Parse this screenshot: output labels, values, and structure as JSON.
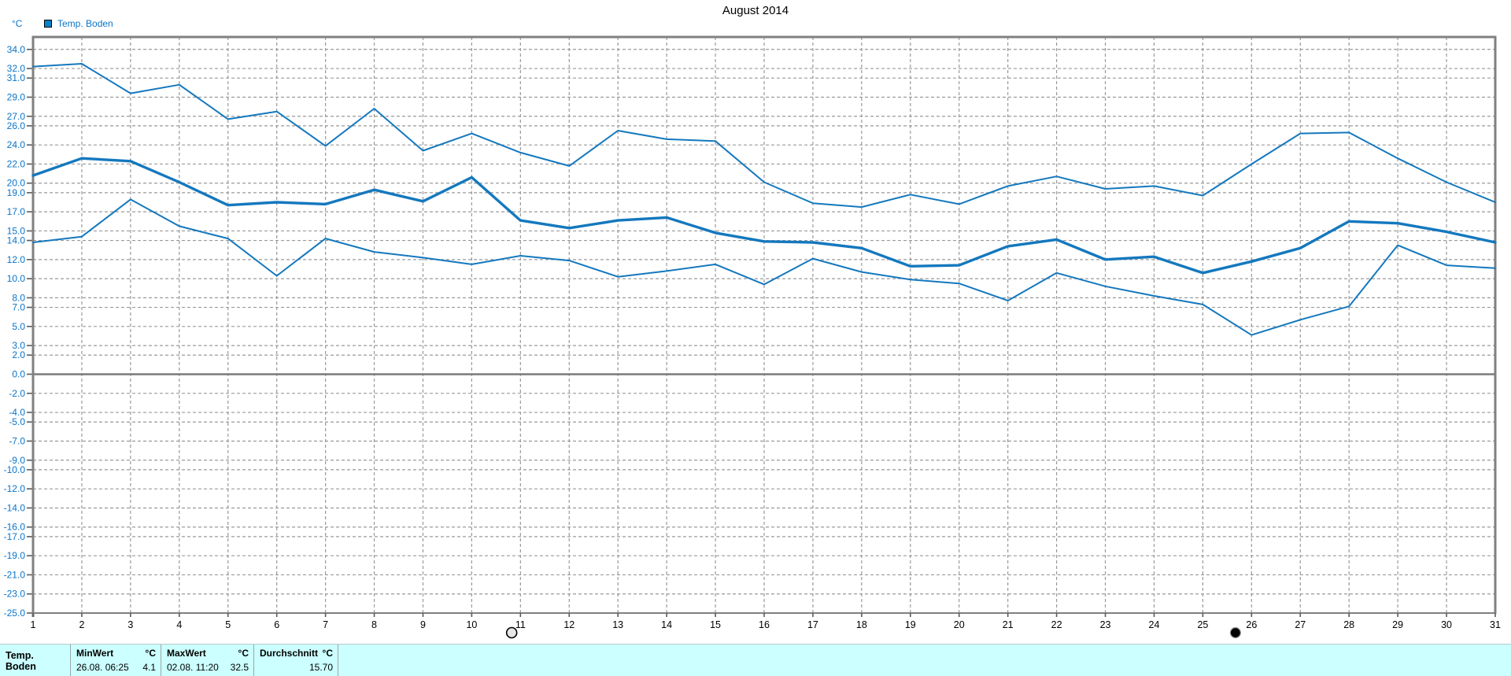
{
  "title": "August 2014",
  "unit_label": "°C",
  "legend": {
    "label": "Temp. Boden"
  },
  "colors": {
    "line": "#1478BE",
    "axis_text": "#0A74C8",
    "grid": "#9A9A9A",
    "frame": "#808080",
    "zero_line": "#808080",
    "tick": "#5A5A5A",
    "table_bg": "#CCFFFF",
    "swatch": "#0A82C8"
  },
  "chart_data": {
    "type": "line",
    "title": "August 2014",
    "xlabel": "",
    "ylabel": "°C",
    "legend_entries": [
      "Temp. Boden"
    ],
    "legend_position": "top-left",
    "grid": true,
    "xlim": [
      1,
      31
    ],
    "ylim": [
      -25,
      35.3
    ],
    "x_tick_labels": [
      "1",
      "2",
      "3",
      "4",
      "5",
      "6",
      "7",
      "8",
      "9",
      "10",
      "11",
      "12",
      "13",
      "14",
      "15",
      "16",
      "17",
      "18",
      "19",
      "20",
      "21",
      "22",
      "23",
      "24",
      "25",
      "26",
      "27",
      "28",
      "29",
      "30",
      "31"
    ],
    "y_ticks": [
      {
        "value": 34,
        "label": "34.0"
      },
      {
        "value": 32,
        "label": "32.0"
      },
      {
        "value": 31,
        "label": "31.0"
      },
      {
        "value": 29,
        "label": "29.0"
      },
      {
        "value": 27,
        "label": "27.0"
      },
      {
        "value": 26,
        "label": "26.0"
      },
      {
        "value": 24,
        "label": "24.0"
      },
      {
        "value": 22,
        "label": "22.0"
      },
      {
        "value": 20,
        "label": "20.0"
      },
      {
        "value": 19,
        "label": "19.0"
      },
      {
        "value": 17,
        "label": "17.0"
      },
      {
        "value": 15,
        "label": "15.0"
      },
      {
        "value": 14,
        "label": "14.0"
      },
      {
        "value": 12,
        "label": "12.0"
      },
      {
        "value": 10,
        "label": "10.0"
      },
      {
        "value": 8,
        "label": "8.0"
      },
      {
        "value": 7,
        "label": "7.0"
      },
      {
        "value": 5,
        "label": "5.0"
      },
      {
        "value": 3,
        "label": "3.0"
      },
      {
        "value": 2,
        "label": "2.0"
      },
      {
        "value": 0,
        "label": "0.0"
      },
      {
        "value": -2,
        "label": "-2.0"
      },
      {
        "value": -4,
        "label": "-4.0"
      },
      {
        "value": -5,
        "label": "-5.0"
      },
      {
        "value": -7,
        "label": "-7.0"
      },
      {
        "value": -9,
        "label": "-9.0"
      },
      {
        "value": -10,
        "label": "-10.0"
      },
      {
        "value": -12,
        "label": "-12.0"
      },
      {
        "value": -14,
        "label": "-14.0"
      },
      {
        "value": -16,
        "label": "-16.0"
      },
      {
        "value": -17,
        "label": "-17.0"
      },
      {
        "value": -19,
        "label": "-19.0"
      },
      {
        "value": -21,
        "label": "-21.0"
      },
      {
        "value": -23,
        "label": "-23.0"
      },
      {
        "value": -25,
        "label": "-25.0"
      }
    ],
    "series": [
      {
        "name": "daily-max",
        "values": [
          32.2,
          32.5,
          29.4,
          30.3,
          26.7,
          27.5,
          23.9,
          27.8,
          23.4,
          25.2,
          23.2,
          21.8,
          25.5,
          24.6,
          24.4,
          20.1,
          17.9,
          17.5,
          18.8,
          17.8,
          19.7,
          20.7,
          19.4,
          19.7,
          18.7,
          22.0,
          25.2,
          25.3,
          22.6,
          20.1,
          18.0
        ]
      },
      {
        "name": "daily-mean",
        "values": [
          20.8,
          22.6,
          22.3,
          20.1,
          17.7,
          18.0,
          17.8,
          19.3,
          18.1,
          20.6,
          16.1,
          15.3,
          16.1,
          16.4,
          14.8,
          13.9,
          13.8,
          13.2,
          11.3,
          11.4,
          13.4,
          14.1,
          12.0,
          12.3,
          10.6,
          11.8,
          13.2,
          16.0,
          15.8,
          14.9,
          13.8
        ]
      },
      {
        "name": "daily-min",
        "values": [
          13.8,
          14.4,
          18.3,
          15.5,
          14.2,
          10.3,
          14.2,
          12.8,
          12.2,
          11.5,
          12.4,
          11.9,
          10.2,
          10.8,
          11.5,
          9.4,
          12.1,
          10.7,
          9.9,
          9.5,
          7.7,
          10.6,
          9.2,
          8.2,
          7.3,
          4.1,
          5.7,
          7.1,
          13.5,
          11.4,
          11.1
        ]
      }
    ],
    "moon_markers": [
      {
        "phase": "full-moon",
        "day": 10.82
      },
      {
        "phase": "new-moon",
        "day": 25.67
      }
    ]
  },
  "summary_table": {
    "row_label": "Temp. Boden",
    "columns": [
      {
        "header": "MinWert",
        "unit": "°C",
        "datetime": "26.08. 06:25",
        "value": "4.1"
      },
      {
        "header": "MaxWert",
        "unit": "°C",
        "datetime": "02.08. 11:20",
        "value": "32.5"
      },
      {
        "header": "Durchschnitt",
        "unit": "°C",
        "datetime": "",
        "value": "15.70"
      }
    ]
  }
}
